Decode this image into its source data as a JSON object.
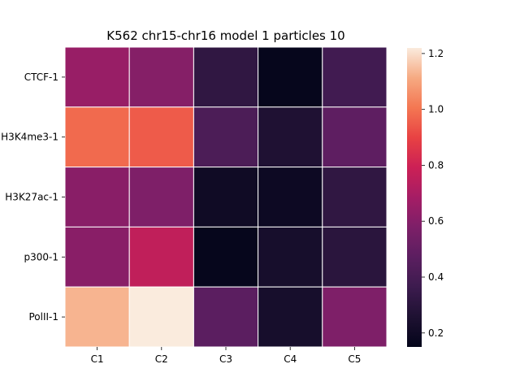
{
  "chart_data": {
    "type": "heatmap",
    "title": "K562 chr15-chr16 model 1 particles 10",
    "xlabel": "",
    "ylabel": "",
    "columns": [
      "C1",
      "C2",
      "C3",
      "C4",
      "C5"
    ],
    "rows": [
      "CTCF-1",
      "H3K4me3-1",
      "H3K27ac-1",
      "p300-1",
      "PolII-1"
    ],
    "values": [
      [
        0.65,
        0.6,
        0.32,
        0.16,
        0.38
      ],
      [
        0.98,
        0.95,
        0.42,
        0.26,
        0.48
      ],
      [
        0.61,
        0.58,
        0.2,
        0.19,
        0.32
      ],
      [
        0.61,
        0.76,
        0.16,
        0.23,
        0.3
      ],
      [
        1.13,
        1.22,
        0.47,
        0.23,
        0.58
      ]
    ],
    "colorbar": {
      "min": 0.15,
      "max": 1.22,
      "ticks": [
        0.2,
        0.4,
        0.6,
        0.8,
        1.0,
        1.2
      ],
      "tick_labels": [
        "0.2",
        "0.4",
        "0.6",
        "0.8",
        "1.0",
        "1.2"
      ]
    },
    "colormap": "rocket",
    "grid_lines": "white"
  }
}
